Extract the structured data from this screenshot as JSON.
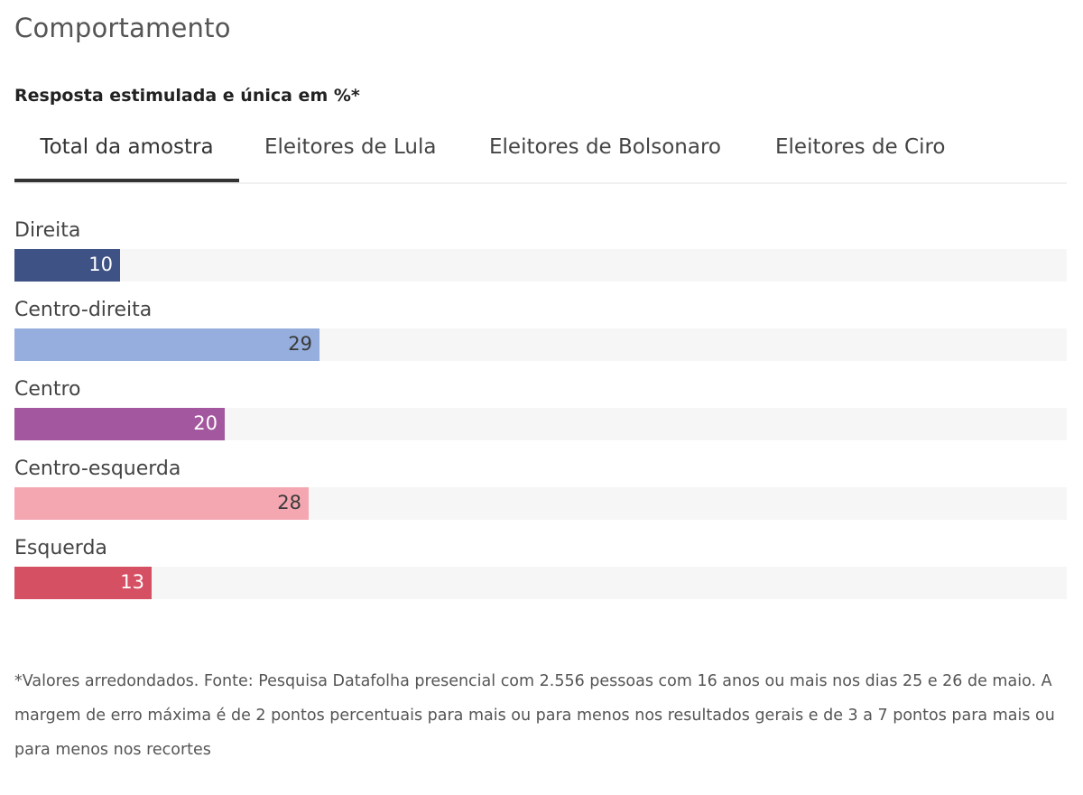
{
  "header": {
    "title": "Comportamento",
    "subtitle": "Resposta estimulada e única em %*"
  },
  "tabs": [
    {
      "label": "Total da amostra",
      "active": true
    },
    {
      "label": "Eleitores de Lula",
      "active": false
    },
    {
      "label": "Eleitores de Bolsonaro",
      "active": false
    },
    {
      "label": "Eleitores de Ciro",
      "active": false
    }
  ],
  "chart_data": {
    "type": "bar",
    "orientation": "horizontal",
    "title": "Resposta estimulada e única em %*",
    "categories": [
      "Direita",
      "Centro-direita",
      "Centro",
      "Centro-esquerda",
      "Esquerda"
    ],
    "values": [
      10,
      29,
      20,
      28,
      13
    ],
    "value_labels": [
      "10",
      "29",
      "20",
      "28",
      "13"
    ],
    "xlim": [
      0,
      100
    ],
    "grid": false,
    "colors": [
      "#3f5286",
      "#95aedd",
      "#a3579e",
      "#f4a7b1",
      "#d65064"
    ],
    "label_colors": [
      "#ffffff",
      "#3a3a3a",
      "#ffffff",
      "#3a3a3a",
      "#ffffff"
    ],
    "track_color": "#f6f6f6"
  },
  "footnote": {
    "text": "*Valores arredondados. Fonte: Pesquisa Datafolha presencial com 2.556 pessoas com 16 anos ou mais nos dias 25 e 26 de maio. A margem de erro máxima é de 2 pontos percentuais para mais ou para menos nos resultados gerais e de 3 a 7 pontos para mais ou para menos nos recortes"
  }
}
